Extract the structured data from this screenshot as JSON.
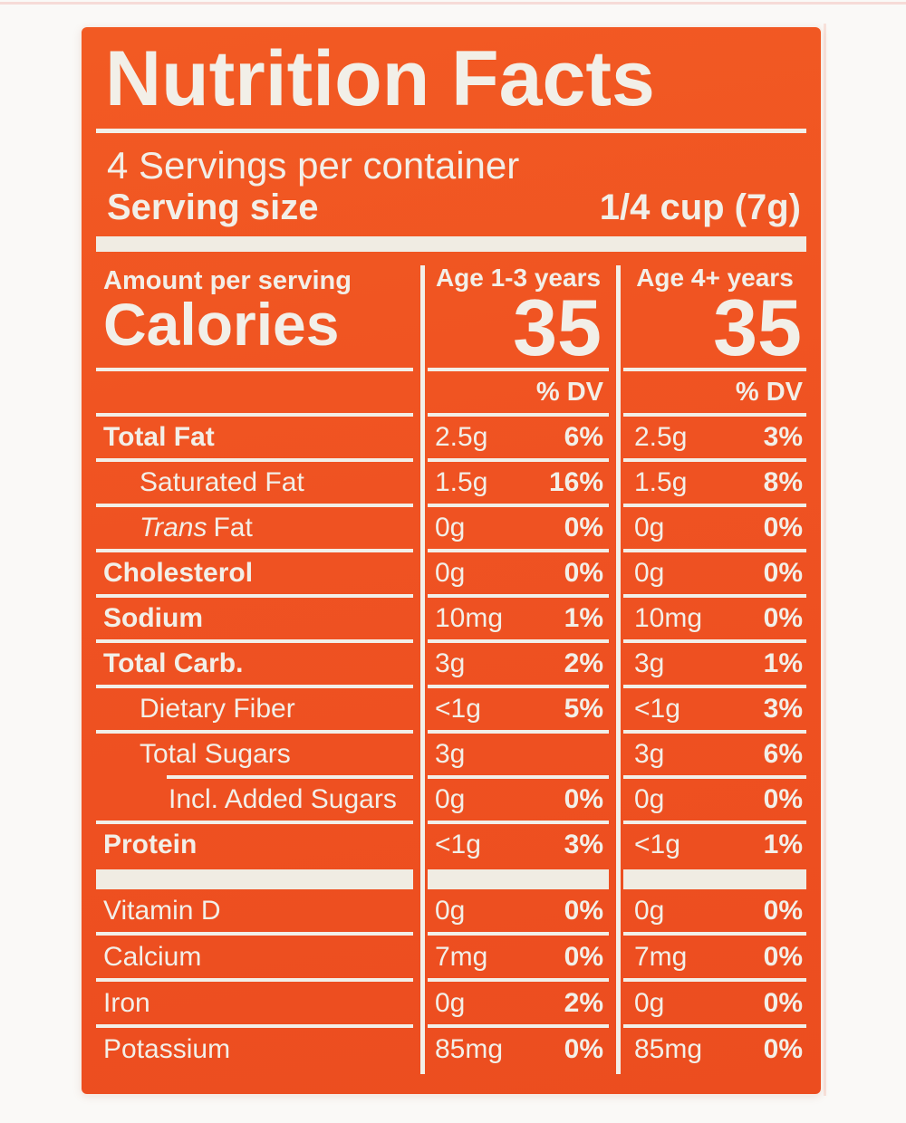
{
  "label": {
    "colors": {
      "panel_orange": "#EF5222",
      "ink_cream": "#F2EFE8"
    },
    "title": "Nutrition Facts",
    "servings_per_container": "4 Servings per container",
    "serving_size": {
      "label": "Serving size",
      "value": "1/4 cup (7g)"
    },
    "amount_per_serving": "Amount per serving",
    "calories_label": "Calories",
    "age_columns": [
      {
        "header": "Age 1-3 years",
        "calories": "35",
        "dv_header": "% DV"
      },
      {
        "header": "Age 4+ years",
        "calories": "35",
        "dv_header": "% DV"
      }
    ],
    "nutrient_rows": [
      {
        "name": "Total Fat",
        "bold": true,
        "indent": 0,
        "cols": [
          {
            "amount": "2.5g",
            "dv": "6%"
          },
          {
            "amount": "2.5g",
            "dv": "3%"
          }
        ]
      },
      {
        "name": "Saturated Fat",
        "bold": false,
        "indent": 1,
        "cols": [
          {
            "amount": "1.5g",
            "dv": "16%"
          },
          {
            "amount": "1.5g",
            "dv": "8%"
          }
        ]
      },
      {
        "name_italic": "Trans",
        "name": "Fat",
        "bold": false,
        "indent": 1,
        "cols": [
          {
            "amount": "0g",
            "dv": "0%"
          },
          {
            "amount": "0g",
            "dv": "0%"
          }
        ]
      },
      {
        "name": "Cholesterol",
        "bold": true,
        "indent": 0,
        "cols": [
          {
            "amount": "0g",
            "dv": "0%"
          },
          {
            "amount": "0g",
            "dv": "0%"
          }
        ]
      },
      {
        "name": "Sodium",
        "bold": true,
        "indent": 0,
        "cols": [
          {
            "amount": "10mg",
            "dv": "1%"
          },
          {
            "amount": "10mg",
            "dv": "0%"
          }
        ]
      },
      {
        "name": "Total Carb.",
        "bold": true,
        "indent": 0,
        "cols": [
          {
            "amount": "3g",
            "dv": "2%"
          },
          {
            "amount": "3g",
            "dv": "1%"
          }
        ]
      },
      {
        "name": "Dietary Fiber",
        "bold": false,
        "indent": 1,
        "cols": [
          {
            "amount": "<1g",
            "dv": "5%"
          },
          {
            "amount": "<1g",
            "dv": "3%"
          }
        ]
      },
      {
        "name": "Total Sugars",
        "bold": false,
        "indent": 1,
        "indented_rule_below": true,
        "cols": [
          {
            "amount": "3g",
            "dv": ""
          },
          {
            "amount": "3g",
            "dv": "6%"
          }
        ]
      },
      {
        "name": "Incl. Added Sugars",
        "bold": false,
        "indent": 2,
        "cols": [
          {
            "amount": "0g",
            "dv": "0%"
          },
          {
            "amount": "0g",
            "dv": "0%"
          }
        ]
      },
      {
        "name": "Protein",
        "bold": true,
        "indent": 0,
        "cols": [
          {
            "amount": "<1g",
            "dv": "3%"
          },
          {
            "amount": "<1g",
            "dv": "1%"
          }
        ]
      }
    ],
    "vitamin_rows": [
      {
        "name": "Vitamin D",
        "cols": [
          {
            "amount": "0g",
            "dv": "0%"
          },
          {
            "amount": "0g",
            "dv": "0%"
          }
        ]
      },
      {
        "name": "Calcium",
        "cols": [
          {
            "amount": "7mg",
            "dv": "0%"
          },
          {
            "amount": "7mg",
            "dv": "0%"
          }
        ]
      },
      {
        "name": "Iron",
        "cols": [
          {
            "amount": "0g",
            "dv": "2%"
          },
          {
            "amount": "0g",
            "dv": "0%"
          }
        ]
      },
      {
        "name": "Potassium",
        "cols": [
          {
            "amount": "85mg",
            "dv": "0%"
          },
          {
            "amount": "85mg",
            "dv": "0%"
          }
        ]
      }
    ]
  }
}
